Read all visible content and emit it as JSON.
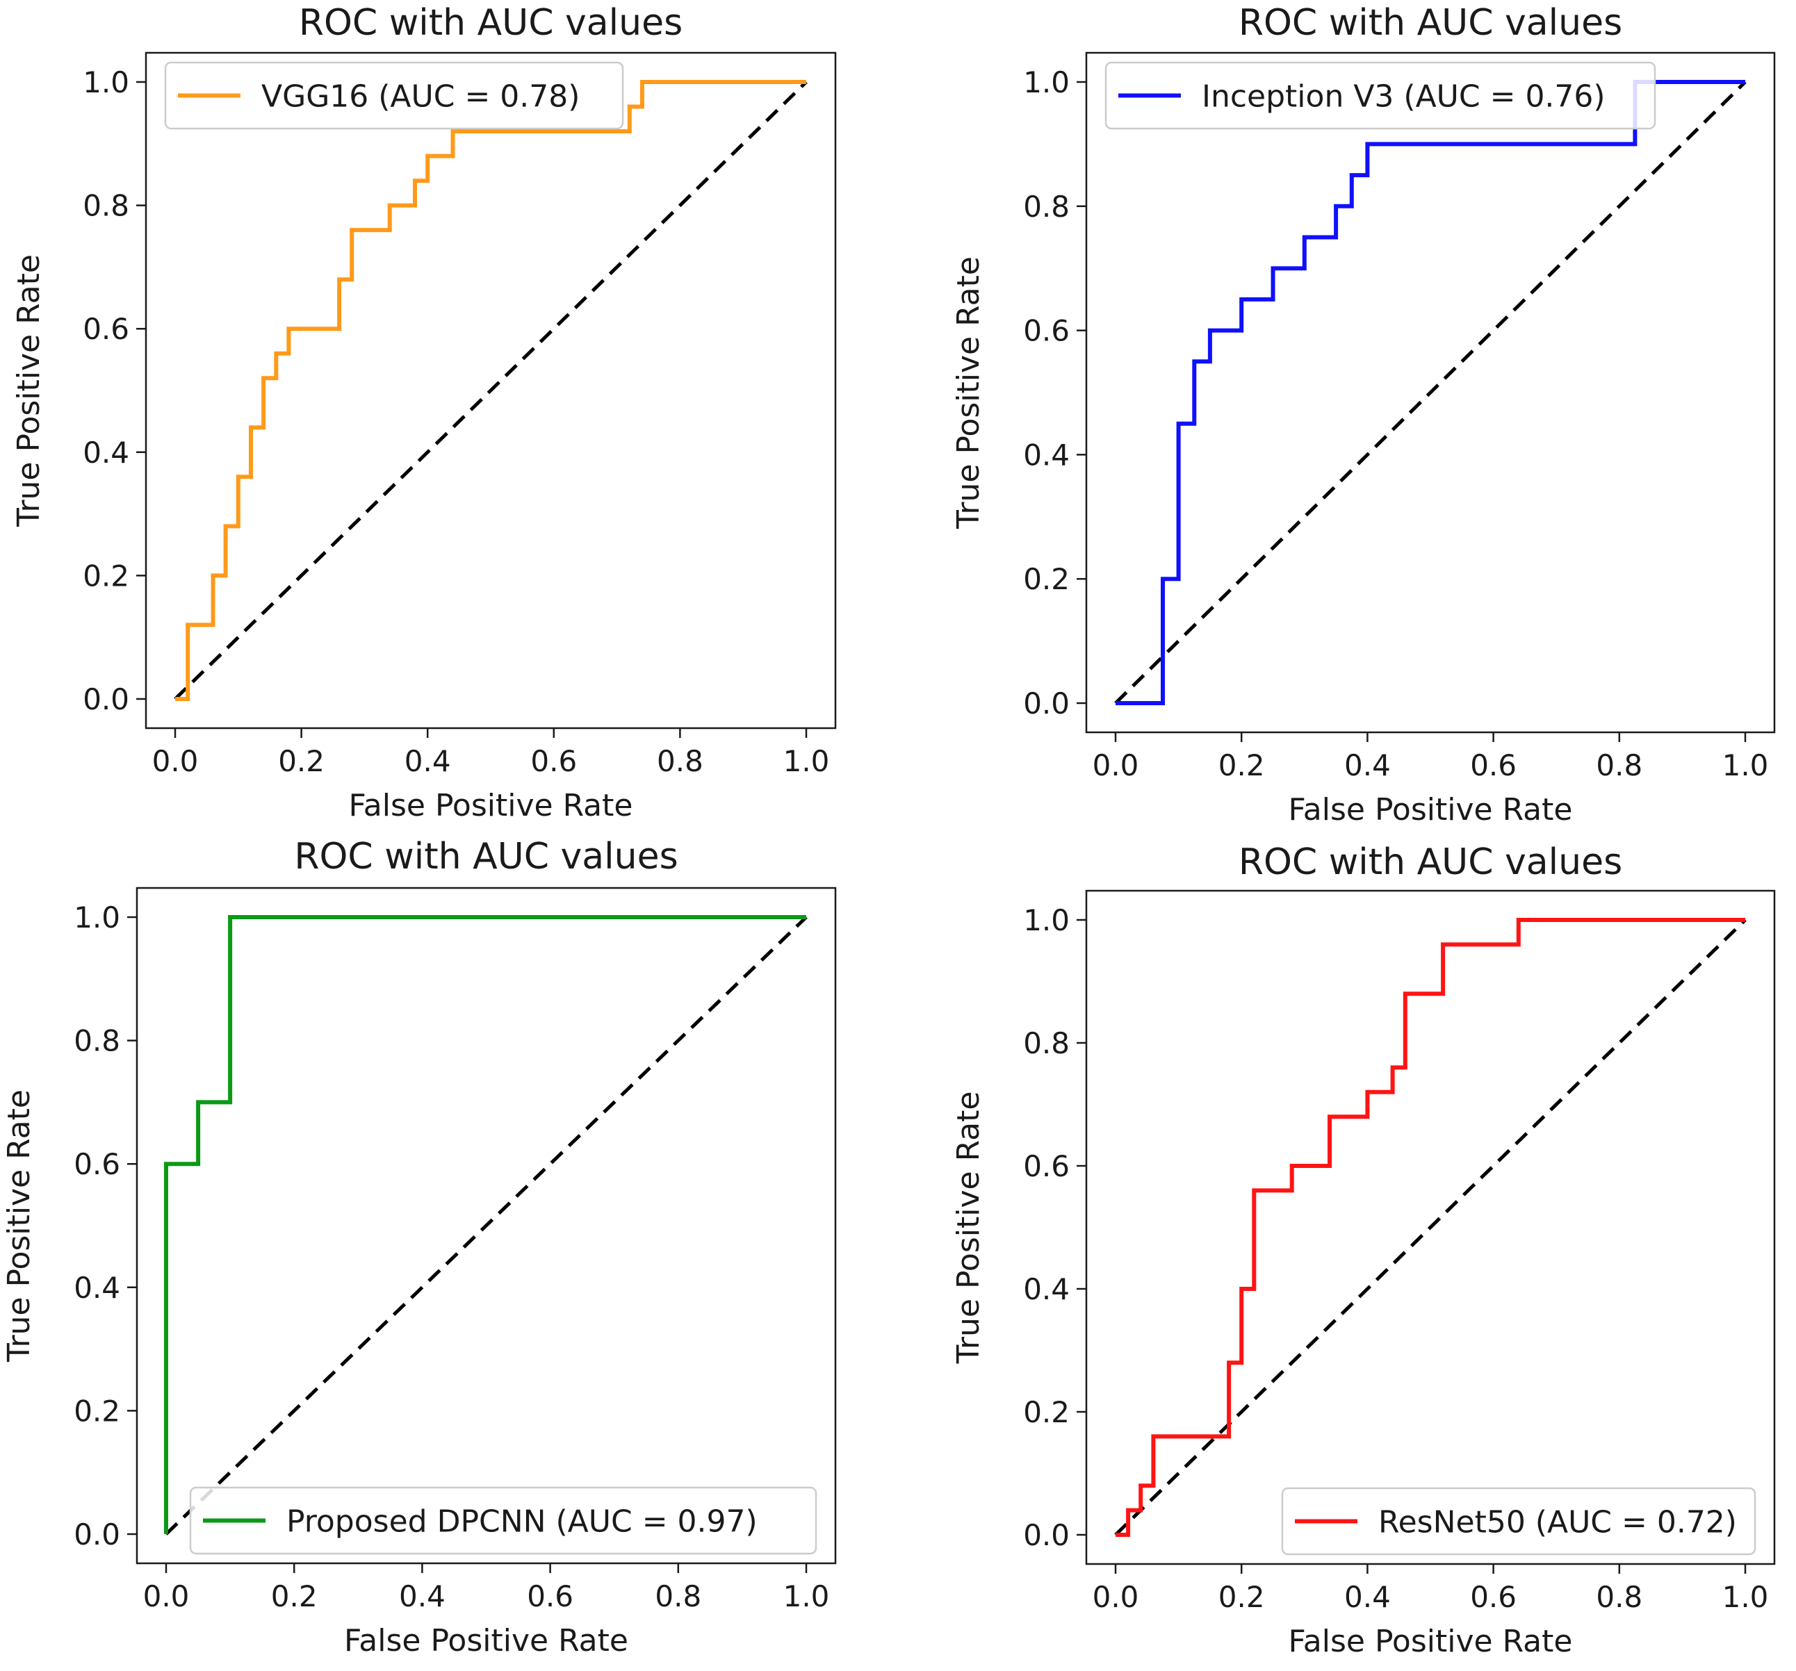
{
  "chart_data": [
    {
      "type": "line",
      "title": "ROC with AUC values",
      "xlabel": "False Positive Rate",
      "ylabel": "True Positive Rate",
      "xlim": [
        0.0,
        1.0
      ],
      "ylim": [
        0.0,
        1.0
      ],
      "xticks": [
        "0.0",
        "0.2",
        "0.4",
        "0.6",
        "0.8",
        "1.0"
      ],
      "yticks": [
        "0.0",
        "0.2",
        "0.4",
        "0.6",
        "0.8",
        "1.0"
      ],
      "legend_position": "upper-left",
      "grid": false,
      "diagonal": {
        "color": "#000000",
        "style": "dashed"
      },
      "series": [
        {
          "name": "VGG16 (AUC = 0.78)",
          "color": "#ff9a1a",
          "x": [
            0,
            0.02,
            0.02,
            0.06,
            0.06,
            0.08,
            0.08,
            0.1,
            0.1,
            0.12,
            0.12,
            0.14,
            0.14,
            0.16,
            0.16,
            0.18,
            0.18,
            0.26,
            0.26,
            0.28,
            0.28,
            0.34,
            0.34,
            0.38,
            0.38,
            0.4,
            0.4,
            0.44,
            0.44,
            0.72,
            0.72,
            0.74,
            0.74,
            1.0
          ],
          "y": [
            0,
            0,
            0.12,
            0.12,
            0.2,
            0.2,
            0.28,
            0.28,
            0.36,
            0.36,
            0.44,
            0.44,
            0.52,
            0.52,
            0.56,
            0.56,
            0.6,
            0.6,
            0.68,
            0.68,
            0.76,
            0.76,
            0.8,
            0.8,
            0.84,
            0.84,
            0.88,
            0.88,
            0.92,
            0.92,
            0.96,
            0.96,
            1.0,
            1.0
          ]
        }
      ]
    },
    {
      "type": "line",
      "title": "ROC with AUC values",
      "xlabel": "False Positive Rate",
      "ylabel": "True Positive Rate",
      "xlim": [
        0.0,
        1.0
      ],
      "ylim": [
        0.0,
        1.0
      ],
      "xticks": [
        "0.0",
        "0.2",
        "0.4",
        "0.6",
        "0.8",
        "1.0"
      ],
      "yticks": [
        "0.0",
        "0.2",
        "0.4",
        "0.6",
        "0.8",
        "1.0"
      ],
      "legend_position": "upper-left",
      "grid": false,
      "diagonal": {
        "color": "#000000",
        "style": "dashed"
      },
      "series": [
        {
          "name": "Inception V3 (AUC = 0.76)",
          "color": "#1010ff",
          "x": [
            0,
            0.075,
            0.075,
            0.1,
            0.1,
            0.125,
            0.125,
            0.15,
            0.15,
            0.2,
            0.2,
            0.25,
            0.25,
            0.3,
            0.3,
            0.35,
            0.35,
            0.375,
            0.375,
            0.4,
            0.4,
            0.825,
            0.825,
            1.0
          ],
          "y": [
            0,
            0,
            0.2,
            0.2,
            0.45,
            0.45,
            0.55,
            0.55,
            0.6,
            0.6,
            0.65,
            0.65,
            0.7,
            0.7,
            0.75,
            0.75,
            0.8,
            0.8,
            0.85,
            0.85,
            0.9,
            0.9,
            1.0,
            1.0
          ]
        }
      ]
    },
    {
      "type": "line",
      "title": "ROC with AUC values",
      "xlabel": "False Positive Rate",
      "ylabel": "True Positive Rate",
      "xlim": [
        0.0,
        1.0
      ],
      "ylim": [
        0.0,
        1.0
      ],
      "xticks": [
        "0.0",
        "0.2",
        "0.4",
        "0.6",
        "0.8",
        "1.0"
      ],
      "yticks": [
        "0.0",
        "0.2",
        "0.4",
        "0.6",
        "0.8",
        "1.0"
      ],
      "legend_position": "lower-right",
      "grid": false,
      "diagonal": {
        "color": "#000000",
        "style": "dashed"
      },
      "series": [
        {
          "name": "Proposed DPCNN (AUC = 0.97)",
          "color": "#0a9a14",
          "x": [
            0,
            0,
            0.05,
            0.05,
            0.1,
            0.1,
            1.0
          ],
          "y": [
            0,
            0.6,
            0.6,
            0.7,
            0.7,
            1.0,
            1.0
          ]
        }
      ]
    },
    {
      "type": "line",
      "title": "ROC with AUC values",
      "xlabel": "False Positive Rate",
      "ylabel": "True Positive Rate",
      "xlim": [
        0.0,
        1.0
      ],
      "ylim": [
        0.0,
        1.0
      ],
      "xticks": [
        "0.0",
        "0.2",
        "0.4",
        "0.6",
        "0.8",
        "1.0"
      ],
      "yticks": [
        "0.0",
        "0.2",
        "0.4",
        "0.6",
        "0.8",
        "1.0"
      ],
      "legend_position": "lower-right",
      "grid": false,
      "diagonal": {
        "color": "#000000",
        "style": "dashed"
      },
      "series": [
        {
          "name": "ResNet50 (AUC = 0.72)",
          "color": "#ff1414",
          "x": [
            0,
            0.02,
            0.02,
            0.04,
            0.04,
            0.06,
            0.06,
            0.18,
            0.18,
            0.2,
            0.2,
            0.22,
            0.22,
            0.28,
            0.28,
            0.34,
            0.34,
            0.4,
            0.4,
            0.44,
            0.44,
            0.46,
            0.46,
            0.52,
            0.52,
            0.64,
            0.64,
            1.0
          ],
          "y": [
            0,
            0,
            0.04,
            0.04,
            0.08,
            0.08,
            0.16,
            0.16,
            0.28,
            0.28,
            0.4,
            0.4,
            0.56,
            0.56,
            0.6,
            0.6,
            0.68,
            0.68,
            0.72,
            0.72,
            0.76,
            0.76,
            0.88,
            0.88,
            0.96,
            0.96,
            1.0,
            1.0
          ]
        }
      ]
    }
  ]
}
